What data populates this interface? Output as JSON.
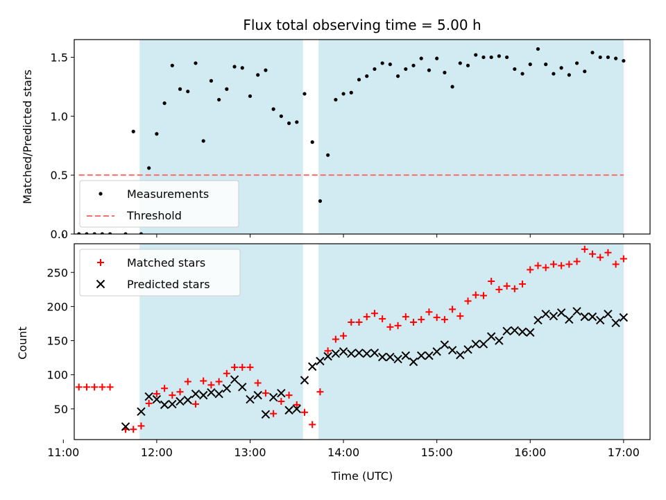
{
  "chart_data": [
    {
      "type": "scatter",
      "title": "Flux total observing time = 5.00 h",
      "xlabel": "",
      "ylabel": "Matched/Predicted stars",
      "xlim": [
        "11:07",
        "17:17"
      ],
      "ylim": [
        0,
        1.65
      ],
      "xticks": [
        "11:00",
        "12:00",
        "13:00",
        "14:00",
        "15:00",
        "16:00",
        "17:00"
      ],
      "yticks": [
        "0.0",
        "0.5",
        "1.0",
        "1.5"
      ],
      "yticks_values": [
        0,
        0.5,
        1.0,
        1.5
      ],
      "shaded_spans": [
        [
          "11:49",
          "13:34"
        ],
        [
          "13:44",
          "17:00"
        ]
      ],
      "shade_color": "#add8e6",
      "legend": {
        "position": "lower-left",
        "entries": [
          {
            "label": "Measurements",
            "marker": "dot",
            "color": "#000000"
          },
          {
            "label": "Threshold",
            "marker": "dash",
            "color": "#ff6b6b"
          }
        ]
      },
      "series": [
        {
          "name": "Measurements",
          "marker": "dot",
          "color": "#000000",
          "x": [
            "11:10",
            "11:15",
            "11:20",
            "11:25",
            "11:30",
            "11:40",
            "11:45",
            "11:50",
            "11:55",
            "12:00",
            "12:05",
            "12:10",
            "12:15",
            "12:20",
            "12:25",
            "12:30",
            "12:35",
            "12:40",
            "12:45",
            "12:50",
            "12:55",
            "13:00",
            "13:05",
            "13:10",
            "13:15",
            "13:20",
            "13:25",
            "13:30",
            "13:35",
            "13:40",
            "13:45",
            "13:50",
            "13:55",
            "14:00",
            "14:05",
            "14:10",
            "14:15",
            "14:20",
            "14:25",
            "14:30",
            "14:35",
            "14:40",
            "14:45",
            "14:50",
            "14:55",
            "15:00",
            "15:05",
            "15:10",
            "15:15",
            "15:20",
            "15:25",
            "15:30",
            "15:35",
            "15:40",
            "15:45",
            "15:50",
            "15:55",
            "16:00",
            "16:05",
            "16:10",
            "16:15",
            "16:20",
            "16:25",
            "16:30",
            "16:35",
            "16:40",
            "16:45",
            "16:50",
            "16:55",
            "17:00"
          ],
          "y": [
            0,
            0,
            0,
            0,
            0,
            0,
            0.87,
            0,
            0.56,
            0.85,
            1.11,
            1.43,
            1.23,
            1.21,
            1.45,
            0.79,
            1.3,
            1.14,
            1.23,
            1.42,
            1.41,
            1.17,
            1.35,
            1.39,
            1.06,
            1.0,
            0.94,
            0.95,
            1.19,
            0.78,
            0.28,
            0.67,
            1.14,
            1.19,
            1.2,
            1.31,
            1.34,
            1.4,
            1.45,
            1.44,
            1.34,
            1.4,
            1.43,
            1.49,
            1.39,
            1.49,
            1.37,
            1.25,
            1.45,
            1.43,
            1.52,
            1.5,
            1.5,
            1.51,
            1.5,
            1.4,
            1.36,
            1.44,
            1.57,
            1.44,
            1.36,
            1.41,
            1.35,
            1.45,
            1.38,
            1.54,
            1.5,
            1.5,
            1.49,
            1.47
          ]
        },
        {
          "name": "Threshold",
          "marker": "dashed-line",
          "color": "#ff6b6b",
          "x": [
            "11:10",
            "17:00"
          ],
          "y": [
            0.5,
            0.5
          ]
        }
      ]
    },
    {
      "type": "scatter",
      "title": "",
      "xlabel": "Time (UTC)",
      "ylabel": "Count",
      "xlim": [
        "11:07",
        "17:17"
      ],
      "ylim": [
        5,
        292
      ],
      "xticks": [
        "11:00",
        "12:00",
        "13:00",
        "14:00",
        "15:00",
        "16:00",
        "17:00"
      ],
      "yticks": [
        "50",
        "100",
        "150",
        "200",
        "250"
      ],
      "yticks_values": [
        50,
        100,
        150,
        200,
        250
      ],
      "shaded_spans": [
        [
          "11:49",
          "13:34"
        ],
        [
          "13:44",
          "17:00"
        ]
      ],
      "shade_color": "#add8e6",
      "legend": {
        "position": "upper-left",
        "entries": [
          {
            "label": "Matched stars",
            "marker": "plus",
            "color": "#ff0000"
          },
          {
            "label": "Predicted stars",
            "marker": "x",
            "color": "#000000"
          }
        ]
      },
      "series": [
        {
          "name": "Matched stars",
          "marker": "plus",
          "color": "#ff0000",
          "x": [
            "11:10",
            "11:15",
            "11:20",
            "11:25",
            "11:30",
            "11:40",
            "11:45",
            "11:50",
            "11:55",
            "12:00",
            "12:05",
            "12:10",
            "12:15",
            "12:20",
            "12:25",
            "12:30",
            "12:35",
            "12:40",
            "12:45",
            "12:50",
            "12:55",
            "13:00",
            "13:05",
            "13:10",
            "13:15",
            "13:20",
            "13:25",
            "13:30",
            "13:35",
            "13:40",
            "13:45",
            "13:50",
            "13:55",
            "14:00",
            "14:05",
            "14:10",
            "14:15",
            "14:20",
            "14:25",
            "14:30",
            "14:35",
            "14:40",
            "14:45",
            "14:50",
            "14:55",
            "15:00",
            "15:05",
            "15:10",
            "15:15",
            "15:20",
            "15:25",
            "15:30",
            "15:35",
            "15:40",
            "15:45",
            "15:50",
            "15:55",
            "16:00",
            "16:05",
            "16:10",
            "16:15",
            "16:20",
            "16:25",
            "16:30",
            "16:35",
            "16:40",
            "16:45",
            "16:50",
            "16:55",
            "17:00"
          ],
          "y": [
            82,
            82,
            82,
            82,
            82,
            20,
            20,
            25,
            58,
            72,
            80,
            70,
            75,
            90,
            57,
            91,
            85,
            90,
            102,
            111,
            111,
            111,
            88,
            73,
            43,
            61,
            70,
            56,
            45,
            27,
            75,
            135,
            152,
            157,
            177,
            177,
            185,
            190,
            182,
            170,
            172,
            185,
            177,
            181,
            192,
            184,
            181,
            196,
            186,
            208,
            217,
            216,
            237,
            225,
            230,
            226,
            233,
            254,
            260,
            257,
            262,
            260,
            262,
            266,
            284,
            277,
            272,
            279,
            262,
            270
          ]
        },
        {
          "name": "Predicted stars",
          "marker": "x",
          "color": "#000000",
          "x": [
            "11:40",
            "11:50",
            "11:55",
            "12:00",
            "12:05",
            "12:10",
            "12:15",
            "12:20",
            "12:25",
            "12:30",
            "12:35",
            "12:40",
            "12:45",
            "12:50",
            "12:55",
            "13:00",
            "13:05",
            "13:10",
            "13:15",
            "13:20",
            "13:25",
            "13:30",
            "13:35",
            "13:40",
            "13:45",
            "13:50",
            "13:55",
            "14:00",
            "14:05",
            "14:10",
            "14:15",
            "14:20",
            "14:25",
            "14:30",
            "14:35",
            "14:40",
            "14:45",
            "14:50",
            "14:55",
            "15:00",
            "15:05",
            "15:10",
            "15:15",
            "15:20",
            "15:25",
            "15:30",
            "15:35",
            "15:40",
            "15:45",
            "15:50",
            "15:55",
            "16:00",
            "16:05",
            "16:10",
            "16:15",
            "16:20",
            "16:25",
            "16:30",
            "16:35",
            "16:40",
            "16:45",
            "16:50",
            "16:55",
            "17:00"
          ],
          "y": [
            24,
            46,
            68,
            64,
            56,
            57,
            61,
            63,
            72,
            70,
            74,
            72,
            80,
            93,
            82,
            64,
            70,
            42,
            67,
            73,
            48,
            50,
            92,
            112,
            120,
            127,
            131,
            134,
            131,
            132,
            131,
            132,
            126,
            126,
            123,
            128,
            119,
            128,
            128,
            134,
            144,
            136,
            129,
            137,
            145,
            145,
            156,
            150,
            164,
            165,
            163,
            162,
            180,
            189,
            186,
            191,
            181,
            193,
            185,
            185,
            180,
            189,
            176,
            184
          ]
        }
      ]
    }
  ]
}
